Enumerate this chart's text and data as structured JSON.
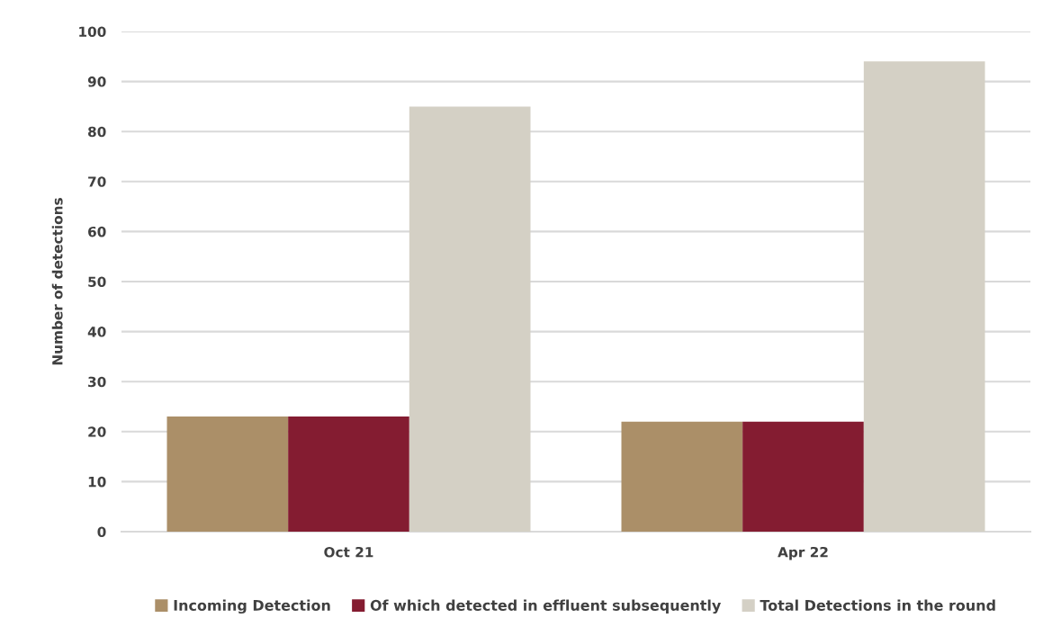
{
  "chart_data": {
    "type": "bar",
    "ylabel": "Number of detections",
    "categories": [
      "Oct 21",
      "Apr 22"
    ],
    "series": [
      {
        "name": "Incoming Detection",
        "color": "#ab8f68",
        "values": [
          23,
          22
        ]
      },
      {
        "name": "Of which detected in effluent subsequently",
        "color": "#841c31",
        "values": [
          23,
          22
        ]
      },
      {
        "name": "Total Detections in the round",
        "color": "#d4d0c5",
        "values": [
          85,
          94
        ]
      }
    ],
    "ylim": [
      0,
      100
    ],
    "yticks": [
      0,
      10,
      20,
      30,
      40,
      50,
      60,
      70,
      80,
      90,
      100
    ],
    "grid": "y",
    "legend": "bottom"
  }
}
